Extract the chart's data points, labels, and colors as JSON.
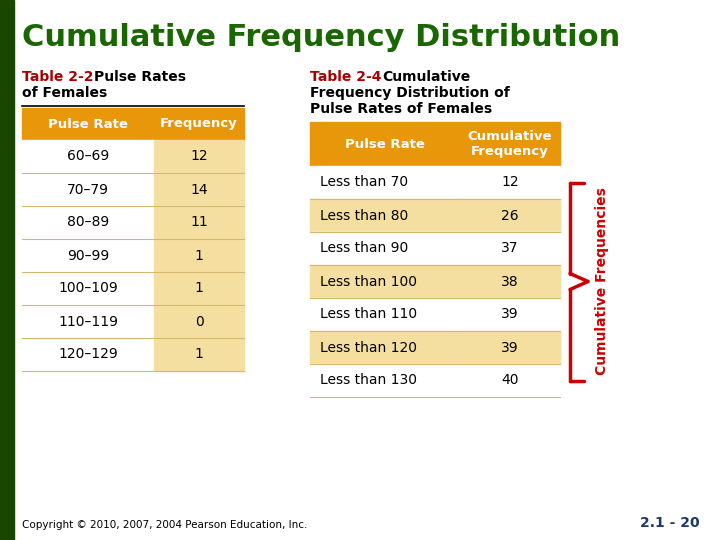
{
  "title": "Cumulative Frequency Distribution",
  "title_color": "#1A6600",
  "background_color": "#FFFFFF",
  "left_bar_color": "#1A4700",
  "table1_title": "Table 2-2",
  "table1_subtitle_bold": "Pulse Rates",
  "table1_subtitle2": "of Females",
  "table1_header": [
    "Pulse Rate",
    "Frequency"
  ],
  "table1_rows": [
    [
      "60–69",
      "12"
    ],
    [
      "70–79",
      "14"
    ],
    [
      "80–89",
      "11"
    ],
    [
      "90–99",
      "1"
    ],
    [
      "100–109",
      "1"
    ],
    [
      "110–119",
      "0"
    ],
    [
      "120–129",
      "1"
    ]
  ],
  "table2_title": "Table 2-4",
  "table2_subtitle_bold": "Cumulative",
  "table2_subtitle2": "Frequency Distribution of",
  "table2_subtitle3": "Pulse Rates of Females",
  "table2_header": [
    "Pulse Rate",
    "Cumulative\nFrequency"
  ],
  "table2_rows": [
    [
      "Less than 70",
      "12"
    ],
    [
      "Less than 80",
      "26"
    ],
    [
      "Less than 90",
      "37"
    ],
    [
      "Less than 100",
      "38"
    ],
    [
      "Less than 110",
      "39"
    ],
    [
      "Less than 120",
      "39"
    ],
    [
      "Less than 130",
      "40"
    ]
  ],
  "header_bg": "#E8970A",
  "row_bg_odd": "#F5DFA0",
  "row_bg_even": "#FAEEC8",
  "row_divider_color": "#D4B870",
  "cumulative_label": "Cumulative Frequencies",
  "cumulative_label_color": "#CC0000",
  "brace_color": "#CC0000",
  "copyright": "Copyright © 2010, 2007, 2004 Pearson Education, Inc.",
  "page_num": "2.1 - 20",
  "table_title_color": "#AA0000",
  "left_col1_bg": "#FFFFFF",
  "left_col2_bg": "#F5DFA0",
  "page_num_color": "#1A3A6B"
}
